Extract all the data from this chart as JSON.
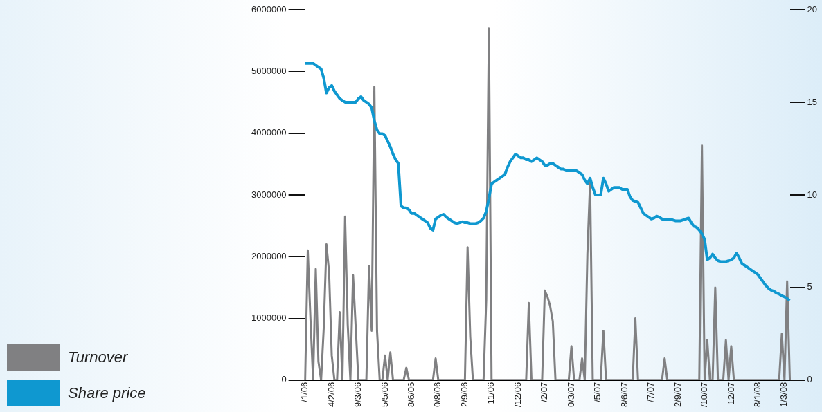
{
  "chart_data": {
    "type": "line",
    "categories": [
      "/1/06",
      null,
      null,
      null,
      null,
      null,
      null,
      null,
      null,
      null,
      "4/2/06",
      null,
      null,
      null,
      null,
      null,
      null,
      null,
      null,
      null,
      "9/3/06",
      null,
      null,
      null,
      null,
      null,
      null,
      null,
      null,
      null,
      "5/5/06",
      null,
      null,
      null,
      null,
      null,
      null,
      null,
      null,
      null,
      "8/6/06",
      null,
      null,
      null,
      null,
      null,
      null,
      null,
      null,
      null,
      "0/8/06",
      null,
      null,
      null,
      null,
      null,
      null,
      null,
      null,
      null,
      "2/9/06",
      null,
      null,
      null,
      null,
      null,
      null,
      null,
      null,
      null,
      "11/06",
      null,
      null,
      null,
      null,
      null,
      null,
      null,
      null,
      null,
      "/12/06",
      null,
      null,
      null,
      null,
      null,
      null,
      null,
      null,
      null,
      "/2/07",
      null,
      null,
      null,
      null,
      null,
      null,
      null,
      null,
      null,
      "0/3/07",
      null,
      null,
      null,
      null,
      null,
      null,
      null,
      null,
      null,
      "/5/07",
      null,
      null,
      null,
      null,
      null,
      null,
      null,
      null,
      null,
      "8/6/07",
      null,
      null,
      null,
      null,
      null,
      null,
      null,
      null,
      null,
      "/7/07",
      null,
      null,
      null,
      null,
      null,
      null,
      null,
      null,
      null,
      "2/9/07",
      null,
      null,
      null,
      null,
      null,
      null,
      null,
      null,
      null,
      "/10/07",
      null,
      null,
      null,
      null,
      null,
      null,
      null,
      null,
      null,
      "12/07",
      null,
      null,
      null,
      null,
      null,
      null,
      null,
      null,
      null,
      "8/1/08",
      null,
      null,
      null,
      null,
      null,
      null,
      null,
      null,
      null,
      "1/3/08",
      null,
      null
    ],
    "ylim": [
      0,
      6000000
    ],
    "yticks": [
      0,
      1000000,
      2000000,
      3000000,
      4000000,
      5000000,
      6000000
    ],
    "y2lim": [
      0,
      20
    ],
    "y2ticks": [
      0,
      5,
      10,
      15,
      20
    ],
    "grid": false,
    "legend": "bottom left",
    "marker": "none",
    "line_style": "solid",
    "series": [
      {
        "name": "Turnover",
        "color": "#808082",
        "values": [
          0,
          2100000,
          1000000,
          0,
          1800000,
          300000,
          0,
          850000,
          2200000,
          1750000,
          400000,
          0,
          0,
          1100000,
          0,
          2650000,
          900000,
          0,
          1700000,
          850000,
          0,
          0,
          0,
          0,
          1850000,
          800000,
          4750000,
          800000,
          0,
          0,
          400000,
          0,
          450000,
          0,
          0,
          0,
          0,
          0,
          200000,
          0,
          0,
          0,
          0,
          0,
          0,
          0,
          0,
          0,
          0,
          350000,
          0,
          0,
          0,
          0,
          0,
          0,
          0,
          0,
          0,
          0,
          0,
          2150000,
          700000,
          0,
          0,
          0,
          0,
          0,
          1300000,
          5700000,
          0,
          0,
          0,
          0,
          0,
          0,
          0,
          0,
          0,
          0,
          0,
          0,
          0,
          0,
          1250000,
          0,
          0,
          0,
          0,
          0,
          1450000,
          1350000,
          1200000,
          950000,
          0,
          0,
          0,
          0,
          0,
          0,
          550000,
          0,
          0,
          0,
          350000,
          0,
          2050000,
          3200000,
          0,
          0,
          0,
          0,
          800000,
          0,
          0,
          0,
          0,
          0,
          0,
          0,
          0,
          0,
          0,
          0,
          1000000,
          0,
          0,
          0,
          0,
          0,
          0,
          0,
          0,
          0,
          0,
          350000,
          0,
          0,
          0,
          0,
          0,
          0,
          0,
          0,
          0,
          0,
          0,
          0,
          0,
          3800000,
          0,
          650000,
          0,
          0,
          1500000,
          0,
          0,
          0,
          650000,
          0,
          550000,
          0,
          0,
          0,
          0,
          0,
          0,
          0,
          0,
          0,
          0,
          0,
          0,
          0,
          0,
          0,
          0,
          0,
          0,
          750000,
          0,
          1600000,
          0
        ]
      },
      {
        "name": "Share price",
        "color": "#0f98d0",
        "axis": "y2",
        "values": [
          17.1,
          17.1,
          17.1,
          17.1,
          17.0,
          16.9,
          16.8,
          16.3,
          15.5,
          15.8,
          15.9,
          15.6,
          15.4,
          15.2,
          15.1,
          15.0,
          15.0,
          15.0,
          15.0,
          15.0,
          15.2,
          15.3,
          15.1,
          15.0,
          14.9,
          14.7,
          14.0,
          13.5,
          13.3,
          13.3,
          13.2,
          12.9,
          12.6,
          12.2,
          11.9,
          11.7,
          9.4,
          9.3,
          9.3,
          9.2,
          9.0,
          9.0,
          8.9,
          8.8,
          8.7,
          8.6,
          8.5,
          8.2,
          8.1,
          8.7,
          8.8,
          8.9,
          8.95,
          8.8,
          8.7,
          8.6,
          8.5,
          8.45,
          8.5,
          8.55,
          8.5,
          8.5,
          8.45,
          8.45,
          8.45,
          8.5,
          8.6,
          8.75,
          9.1,
          9.8,
          10.6,
          10.7,
          10.8,
          10.9,
          11.0,
          11.1,
          11.5,
          11.8,
          12.0,
          12.2,
          12.1,
          12.0,
          12.0,
          11.9,
          11.9,
          11.8,
          11.9,
          12.0,
          11.9,
          11.8,
          11.6,
          11.6,
          11.7,
          11.7,
          11.6,
          11.5,
          11.4,
          11.4,
          11.3,
          11.3,
          11.3,
          11.3,
          11.3,
          11.2,
          11.1,
          10.8,
          10.6,
          10.9,
          10.4,
          10.0,
          10.0,
          10.0,
          10.9,
          10.6,
          10.2,
          10.3,
          10.4,
          10.4,
          10.4,
          10.3,
          10.3,
          10.3,
          9.9,
          9.7,
          9.65,
          9.6,
          9.3,
          9.0,
          8.9,
          8.8,
          8.7,
          8.75,
          8.85,
          8.8,
          8.7,
          8.65,
          8.65,
          8.65,
          8.65,
          8.6,
          8.6,
          8.6,
          8.65,
          8.7,
          8.75,
          8.5,
          8.3,
          8.25,
          8.1,
          7.9,
          7.6,
          6.5,
          6.6,
          6.8,
          6.6,
          6.45,
          6.4,
          6.4,
          6.4,
          6.45,
          6.5,
          6.6,
          6.85,
          6.6,
          6.3,
          6.2,
          6.1,
          6.0,
          5.9,
          5.8,
          5.7,
          5.5,
          5.3,
          5.1,
          4.95,
          4.85,
          4.8,
          4.7,
          4.65,
          4.55,
          4.5,
          4.4,
          4.3
        ]
      }
    ]
  }
}
